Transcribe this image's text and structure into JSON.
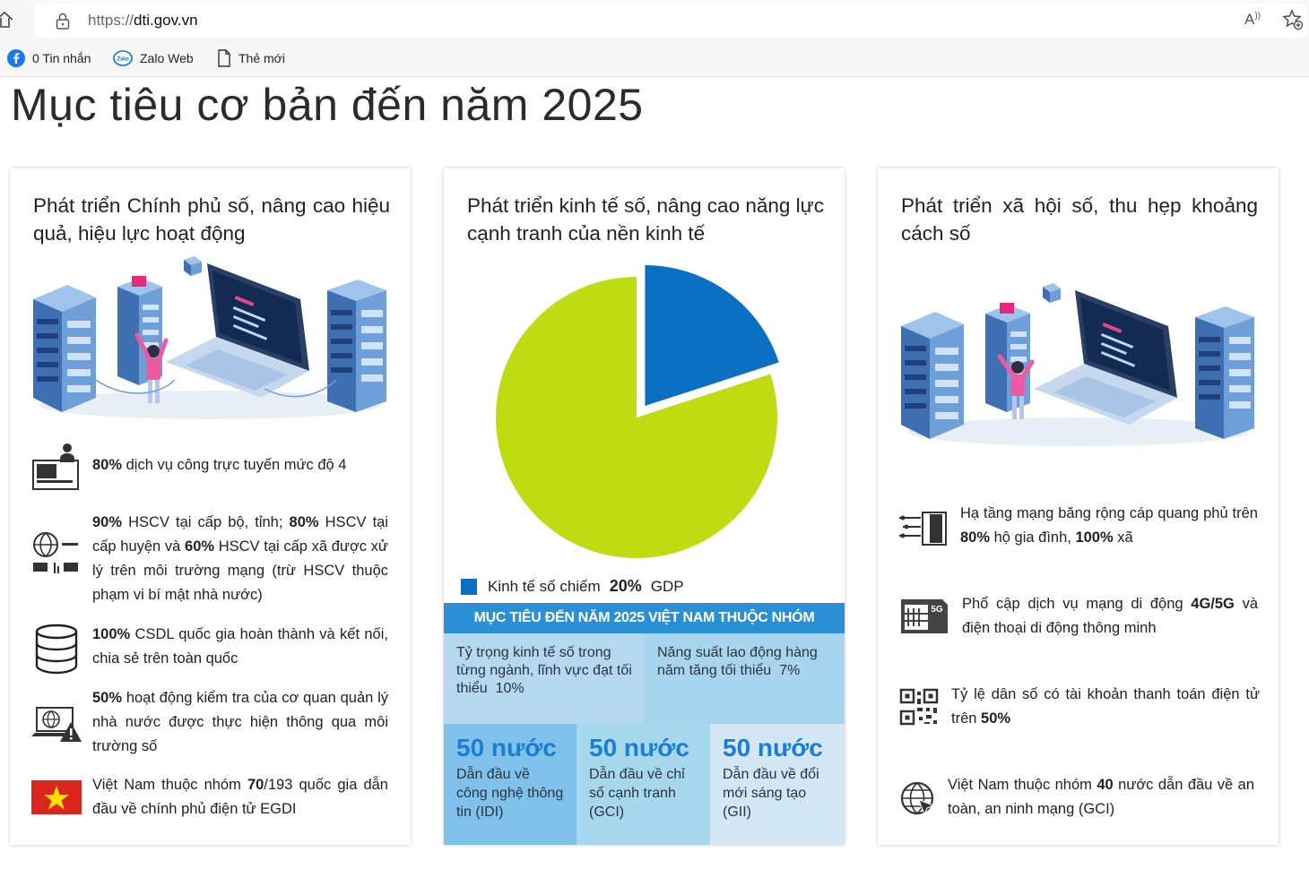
{
  "browser": {
    "url_scheme": "https://",
    "url_host": "dti.gov.vn",
    "read_aloud_label": "A",
    "bookmarks": [
      {
        "label": "0 Tin nhắn",
        "icon": "facebook-icon"
      },
      {
        "label": "Zalo Web",
        "icon": "zalo-icon"
      },
      {
        "label": "Thẻ mới",
        "icon": "page-icon"
      }
    ]
  },
  "page": {
    "title": "Mục tiêu cơ bản đến năm 2025"
  },
  "cards": {
    "left": {
      "title": "Phát triển Chính phủ số, nâng cao hiệu quả, hiệu lực hoạt động",
      "items": [
        {
          "bold1": "80%",
          "text1": " dịch vụ công trực tuyến mức độ 4"
        },
        {
          "bold1": "90%",
          "text1": " HSCV tại cấp bộ, tỉnh; ",
          "bold2": "80%",
          "text2": " HSCV tại cấp huyện và ",
          "bold3": "60%",
          "text3": " HSCV tại cấp xã được xử lý trên môi trường mạng (trừ HSCV thuộc phạm vi bí mật nhà nước)"
        },
        {
          "bold1": "100%",
          "text1": " CSDL quốc gia hoàn thành và kết nối, chia sẻ trên toàn quốc"
        },
        {
          "bold1": "50%",
          "text1": " hoạt động kiểm tra của cơ quan quản lý nhà nước được thực hiện thông qua môi trường số"
        },
        {
          "text0": "Việt Nam thuộc nhóm ",
          "bold1": "70",
          "text1": "/193 quốc gia dẫn đầu về chính phủ điện tử EGDI"
        }
      ]
    },
    "middle": {
      "title": "Phát triển kinh tế số, nâng cao năng lực cạnh tranh của nền kinh tế",
      "legend_prefix": "Kinh tế số chiếm",
      "legend_value": "20%",
      "legend_suffix": "GDP",
      "banner": "MỤC TIÊU ĐẾN NĂM 2025 VIỆT NAM THUỘC NHÓM",
      "target1_text": "Tỷ trọng kinh tế số trong từng ngành, lĩnh vực đạt tối thiểu",
      "target1_value": "10%",
      "target2_text": "Năng suất lao động hàng năm tăng tối thiểu",
      "target2_value": "7%",
      "groups": [
        {
          "big": "50 nước",
          "desc": "Dẫn đầu về công nghệ thông tin (IDI)"
        },
        {
          "big": "50 nước",
          "desc": "Dẫn đầu về chỉ số cạnh tranh (GCI)"
        },
        {
          "big": "50 nước",
          "desc": "Dẫn đầu về đổi mới sáng tạo (GII)"
        }
      ]
    },
    "right": {
      "title": "Phát triển xã hội số, thu hẹp khoảng cách số",
      "items": [
        {
          "text0": "Hạ tầng mạng băng rộng cáp quang phủ trên ",
          "bold1": "80%",
          "text1": " hộ gia đình, ",
          "bold2": "100%",
          "text2": " xã"
        },
        {
          "text0": "Phổ cập dịch vụ mạng di động ",
          "bold1": "4G/5G",
          "text1": " và điện thoại di động thông minh"
        },
        {
          "text0": "Tỷ lệ dân số có tài khoản thanh toán điện tử trên ",
          "bold1": "50%"
        },
        {
          "text0": "Việt Nam thuộc nhóm ",
          "bold1": "40",
          "text1": " nước dẫn đầu về an toàn, an ninh mạng (GCI)"
        }
      ],
      "badge_5g": "5G"
    }
  },
  "chart_data": {
    "type": "pie",
    "title": "",
    "slices": [
      {
        "label": "Kinh tế số",
        "value": 20,
        "color": "#0b6fc4"
      },
      {
        "label": "",
        "value": 80,
        "color": "#bfdc12"
      }
    ]
  },
  "colors": {
    "accent_blue": "#2b8fd6",
    "pie_blue": "#0b6fc4",
    "pie_green": "#bfdc12",
    "cell_light": "#b3d8ef",
    "cell_mid": "#a7d4ee",
    "cell_dark": "#7fc1ea"
  }
}
